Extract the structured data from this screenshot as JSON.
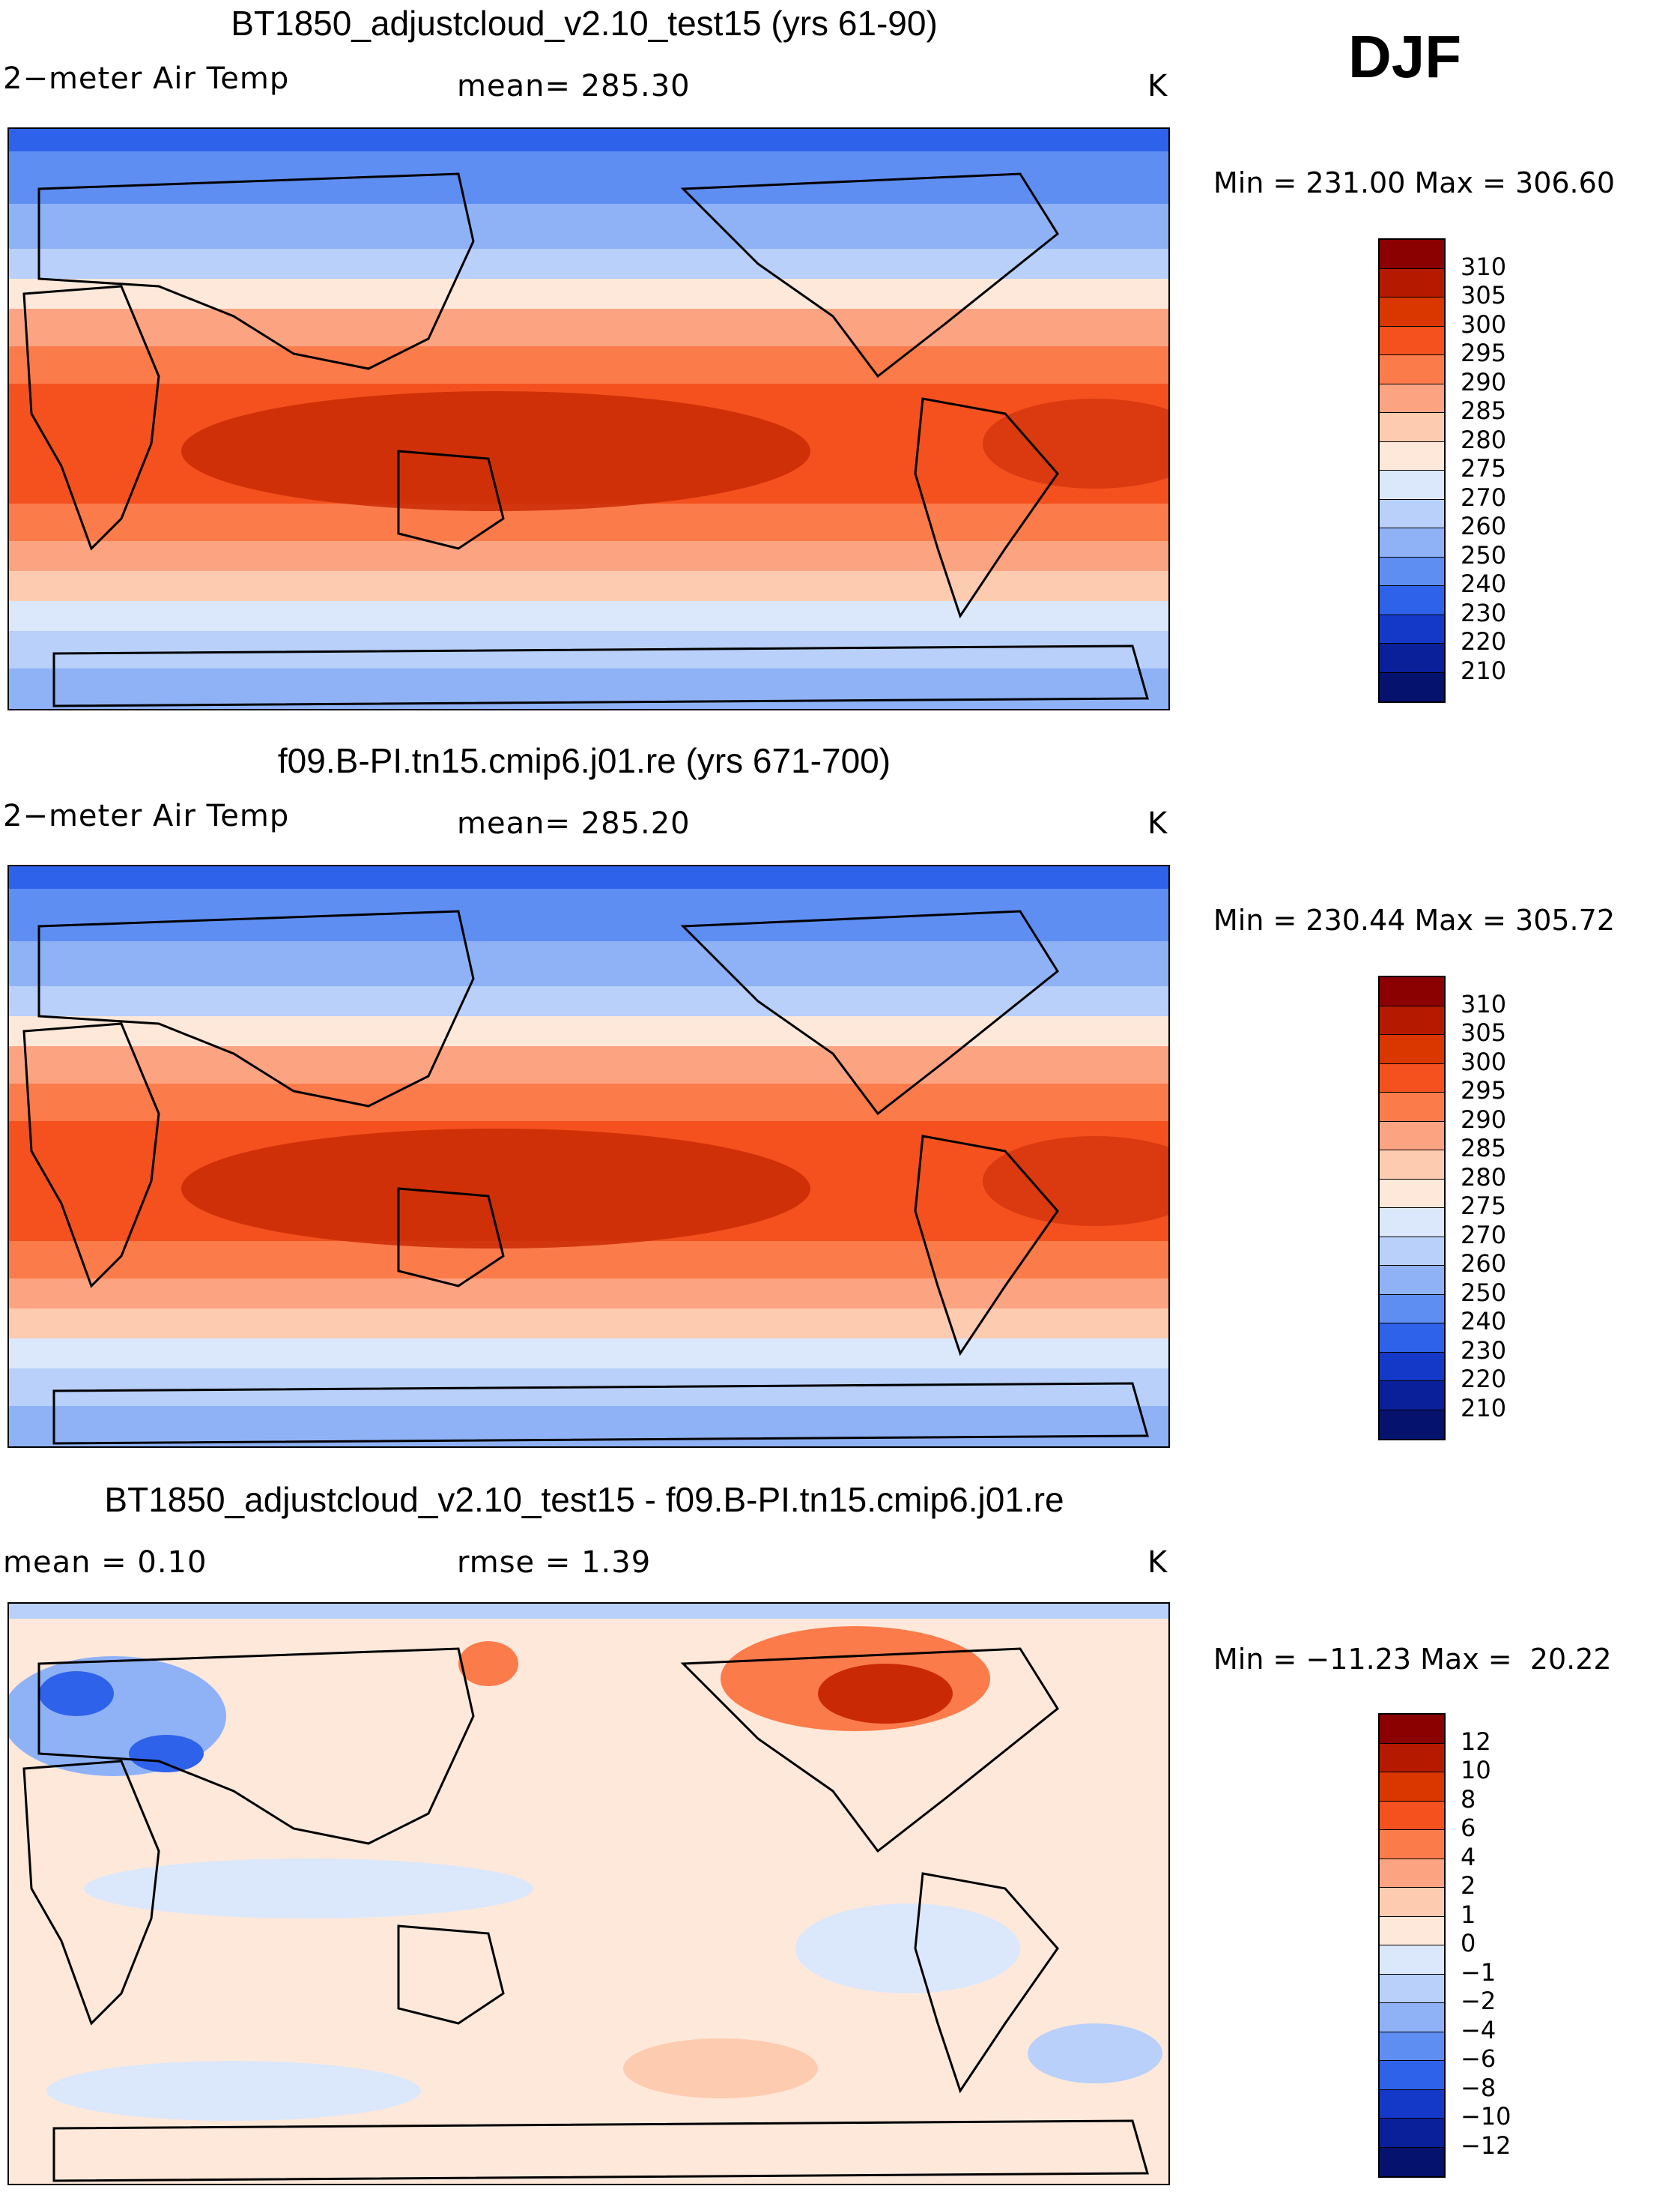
{
  "season": "DJF",
  "panels": [
    {
      "title": "BT1850_adjustcloud_v2.10_test15 (yrs 61-90)",
      "left_label": "2−meter Air Temp",
      "mid_label": "mean= 285.30",
      "mid_label2": "",
      "units": "K",
      "minmax": "Min = 231.00 Max = 306.60",
      "colorbar": {
        "colors": [
          "#8b0000",
          "#b51a00",
          "#d93600",
          "#f4511e",
          "#fb7b4b",
          "#fca482",
          "#fdcbb0",
          "#fee8da",
          "#dbe8fb",
          "#b8d0fa",
          "#8fb2f7",
          "#5f8ef3",
          "#2f62ea",
          "#1439c8",
          "#0a1f9a",
          "#05126e"
        ],
        "labels": [
          "310",
          "305",
          "300",
          "295",
          "290",
          "285",
          "280",
          "275",
          "270",
          "260",
          "250",
          "240",
          "230",
          "220",
          "210"
        ]
      }
    },
    {
      "title": "f09.B-PI.tn15.cmip6.j01.re (yrs 671-700)",
      "left_label": "2−meter Air Temp",
      "mid_label": "mean= 285.20",
      "mid_label2": "",
      "units": "K",
      "minmax": "Min = 230.44 Max = 305.72",
      "colorbar": {
        "colors": [
          "#8b0000",
          "#b51a00",
          "#d93600",
          "#f4511e",
          "#fb7b4b",
          "#fca482",
          "#fdcbb0",
          "#fee8da",
          "#dbe8fb",
          "#b8d0fa",
          "#8fb2f7",
          "#5f8ef3",
          "#2f62ea",
          "#1439c8",
          "#0a1f9a",
          "#05126e"
        ],
        "labels": [
          "310",
          "305",
          "300",
          "295",
          "290",
          "285",
          "280",
          "275",
          "270",
          "260",
          "250",
          "240",
          "230",
          "220",
          "210"
        ]
      }
    },
    {
      "title": "BT1850_adjustcloud_v2.10_test15 - f09.B-PI.tn15.cmip6.j01.re",
      "left_label": "mean =    0.10",
      "mid_label": "rmse =    1.39",
      "mid_label2": "",
      "units": "K",
      "minmax": "Min = −11.23 Max =  20.22",
      "colorbar": {
        "colors": [
          "#8b0000",
          "#b51a00",
          "#d93600",
          "#f4511e",
          "#fb7b4b",
          "#fca482",
          "#fdcbb0",
          "#fee8da",
          "#dbe8fb",
          "#b8d0fa",
          "#8fb2f7",
          "#5f8ef3",
          "#2f62ea",
          "#1439c8",
          "#0a1f9a",
          "#05126e"
        ],
        "labels": [
          "12",
          "10",
          "8",
          "6",
          "4",
          "2",
          "1",
          "0",
          "−1",
          "−2",
          "−4",
          "−6",
          "−8",
          "−10",
          "−12"
        ]
      }
    }
  ],
  "map_colors": {
    "deep_red": "#c92a05",
    "red": "#f4511e",
    "orange": "#fb7b4b",
    "salmon": "#fca482",
    "peach": "#fdcbb0",
    "cream": "#fee8da",
    "pale_blue": "#dbe8fb",
    "light_blue": "#b8d0fa",
    "mid_blue": "#8fb2f7",
    "blue": "#5f8ef3",
    "strong_blue": "#2f62ea",
    "navy": "#1439c8"
  }
}
